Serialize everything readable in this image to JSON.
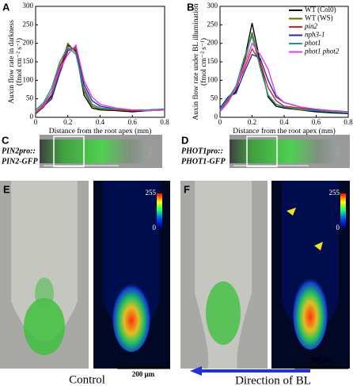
{
  "chart_data": [
    {
      "type": "line",
      "panel_label": "A",
      "ylabel": "Auxin flow rate in darkness",
      "ylabel_unit": "(fmol cm⁻² s⁻¹)",
      "xlabel": "Distance from the root apex (mm)",
      "x": [
        0,
        0.05,
        0.1,
        0.15,
        0.2,
        0.25,
        0.3,
        0.35,
        0.4,
        0.5,
        0.6,
        0.7,
        0.8
      ],
      "xlim": [
        0,
        0.8
      ],
      "xticks": [
        0,
        0.2,
        0.4,
        0.6,
        0.8
      ],
      "ylim": [
        0,
        300
      ],
      "yticks": [
        0,
        50,
        100,
        150,
        200,
        250,
        300
      ],
      "series": [
        {
          "color": "#000000",
          "values": [
            10,
            28,
            60,
            120,
            195,
            180,
            60,
            25,
            20,
            18,
            15,
            18,
            20
          ]
        },
        {
          "color": "#6b6b00",
          "values": [
            12,
            30,
            55,
            130,
            200,
            175,
            70,
            30,
            22,
            20,
            18,
            20,
            22
          ]
        },
        {
          "color": "#e02020",
          "values": [
            15,
            35,
            70,
            140,
            185,
            185,
            80,
            35,
            25,
            20,
            18,
            18,
            20
          ]
        },
        {
          "color": "#2828b8",
          "values": [
            15,
            30,
            50,
            120,
            180,
            190,
            90,
            45,
            30,
            22,
            20,
            20,
            22
          ]
        },
        {
          "color": "#1a9a8a",
          "values": [
            20,
            40,
            80,
            150,
            190,
            170,
            75,
            35,
            25,
            22,
            20,
            20,
            22
          ]
        },
        {
          "color": "#e040e0",
          "values": [
            15,
            30,
            70,
            130,
            170,
            195,
            100,
            55,
            35,
            25,
            20,
            18,
            20
          ]
        }
      ]
    },
    {
      "type": "line",
      "panel_label": "B",
      "ylabel": "Auxin flow rate under BL illumination",
      "ylabel_unit": "(fmol cm⁻² s⁻¹)",
      "xlabel": "Distance from the root apex (mm)",
      "x": [
        0,
        0.05,
        0.1,
        0.15,
        0.2,
        0.25,
        0.3,
        0.35,
        0.4,
        0.5,
        0.6,
        0.7,
        0.8
      ],
      "xlim": [
        0,
        0.8
      ],
      "xticks": [
        0,
        0.2,
        0.4,
        0.6,
        0.8
      ],
      "ylim": [
        0,
        300
      ],
      "yticks": [
        0,
        50,
        100,
        150,
        200,
        250,
        300
      ],
      "series": [
        {
          "name": "WT (Col0)",
          "color": "#000000",
          "values": [
            15,
            50,
            70,
            150,
            255,
            150,
            55,
            30,
            25,
            20,
            15,
            12,
            10
          ]
        },
        {
          "name": "WT (WS)",
          "color": "#6b6b00",
          "values": [
            15,
            55,
            75,
            145,
            230,
            140,
            60,
            35,
            28,
            20,
            18,
            15,
            12
          ]
        },
        {
          "name": "pin2",
          "color": "#e02020",
          "values": [
            20,
            45,
            80,
            130,
            185,
            150,
            80,
            45,
            30,
            25,
            20,
            15,
            12
          ]
        },
        {
          "name": "nph3-1",
          "color": "#2828b8",
          "values": [
            25,
            55,
            65,
            120,
            170,
            160,
            100,
            55,
            40,
            28,
            20,
            18,
            15
          ]
        },
        {
          "name": "phot1",
          "color": "#1a9a8a",
          "values": [
            20,
            50,
            85,
            160,
            220,
            135,
            60,
            35,
            28,
            22,
            18,
            15,
            12
          ]
        },
        {
          "name": "phot1 phot2",
          "color": "#e040e0",
          "values": [
            15,
            40,
            80,
            140,
            200,
            170,
            130,
            60,
            40,
            28,
            22,
            18,
            15
          ]
        }
      ]
    }
  ],
  "panels": {
    "C": {
      "label": "C",
      "text": [
        "PIN2pro::",
        "PIN2-GFP"
      ]
    },
    "D": {
      "label": "D",
      "text": [
        "PHOT1pro::",
        "PHOT1-GFP"
      ]
    },
    "E": {
      "label": "E",
      "colorbar": [
        "255",
        "0"
      ],
      "scale_bar": "200 µm",
      "caption": "Control"
    },
    "F": {
      "label": "F",
      "colorbar": [
        "255",
        "0"
      ],
      "scale_bar": "200 µm",
      "caption": "Direction of BL"
    }
  }
}
